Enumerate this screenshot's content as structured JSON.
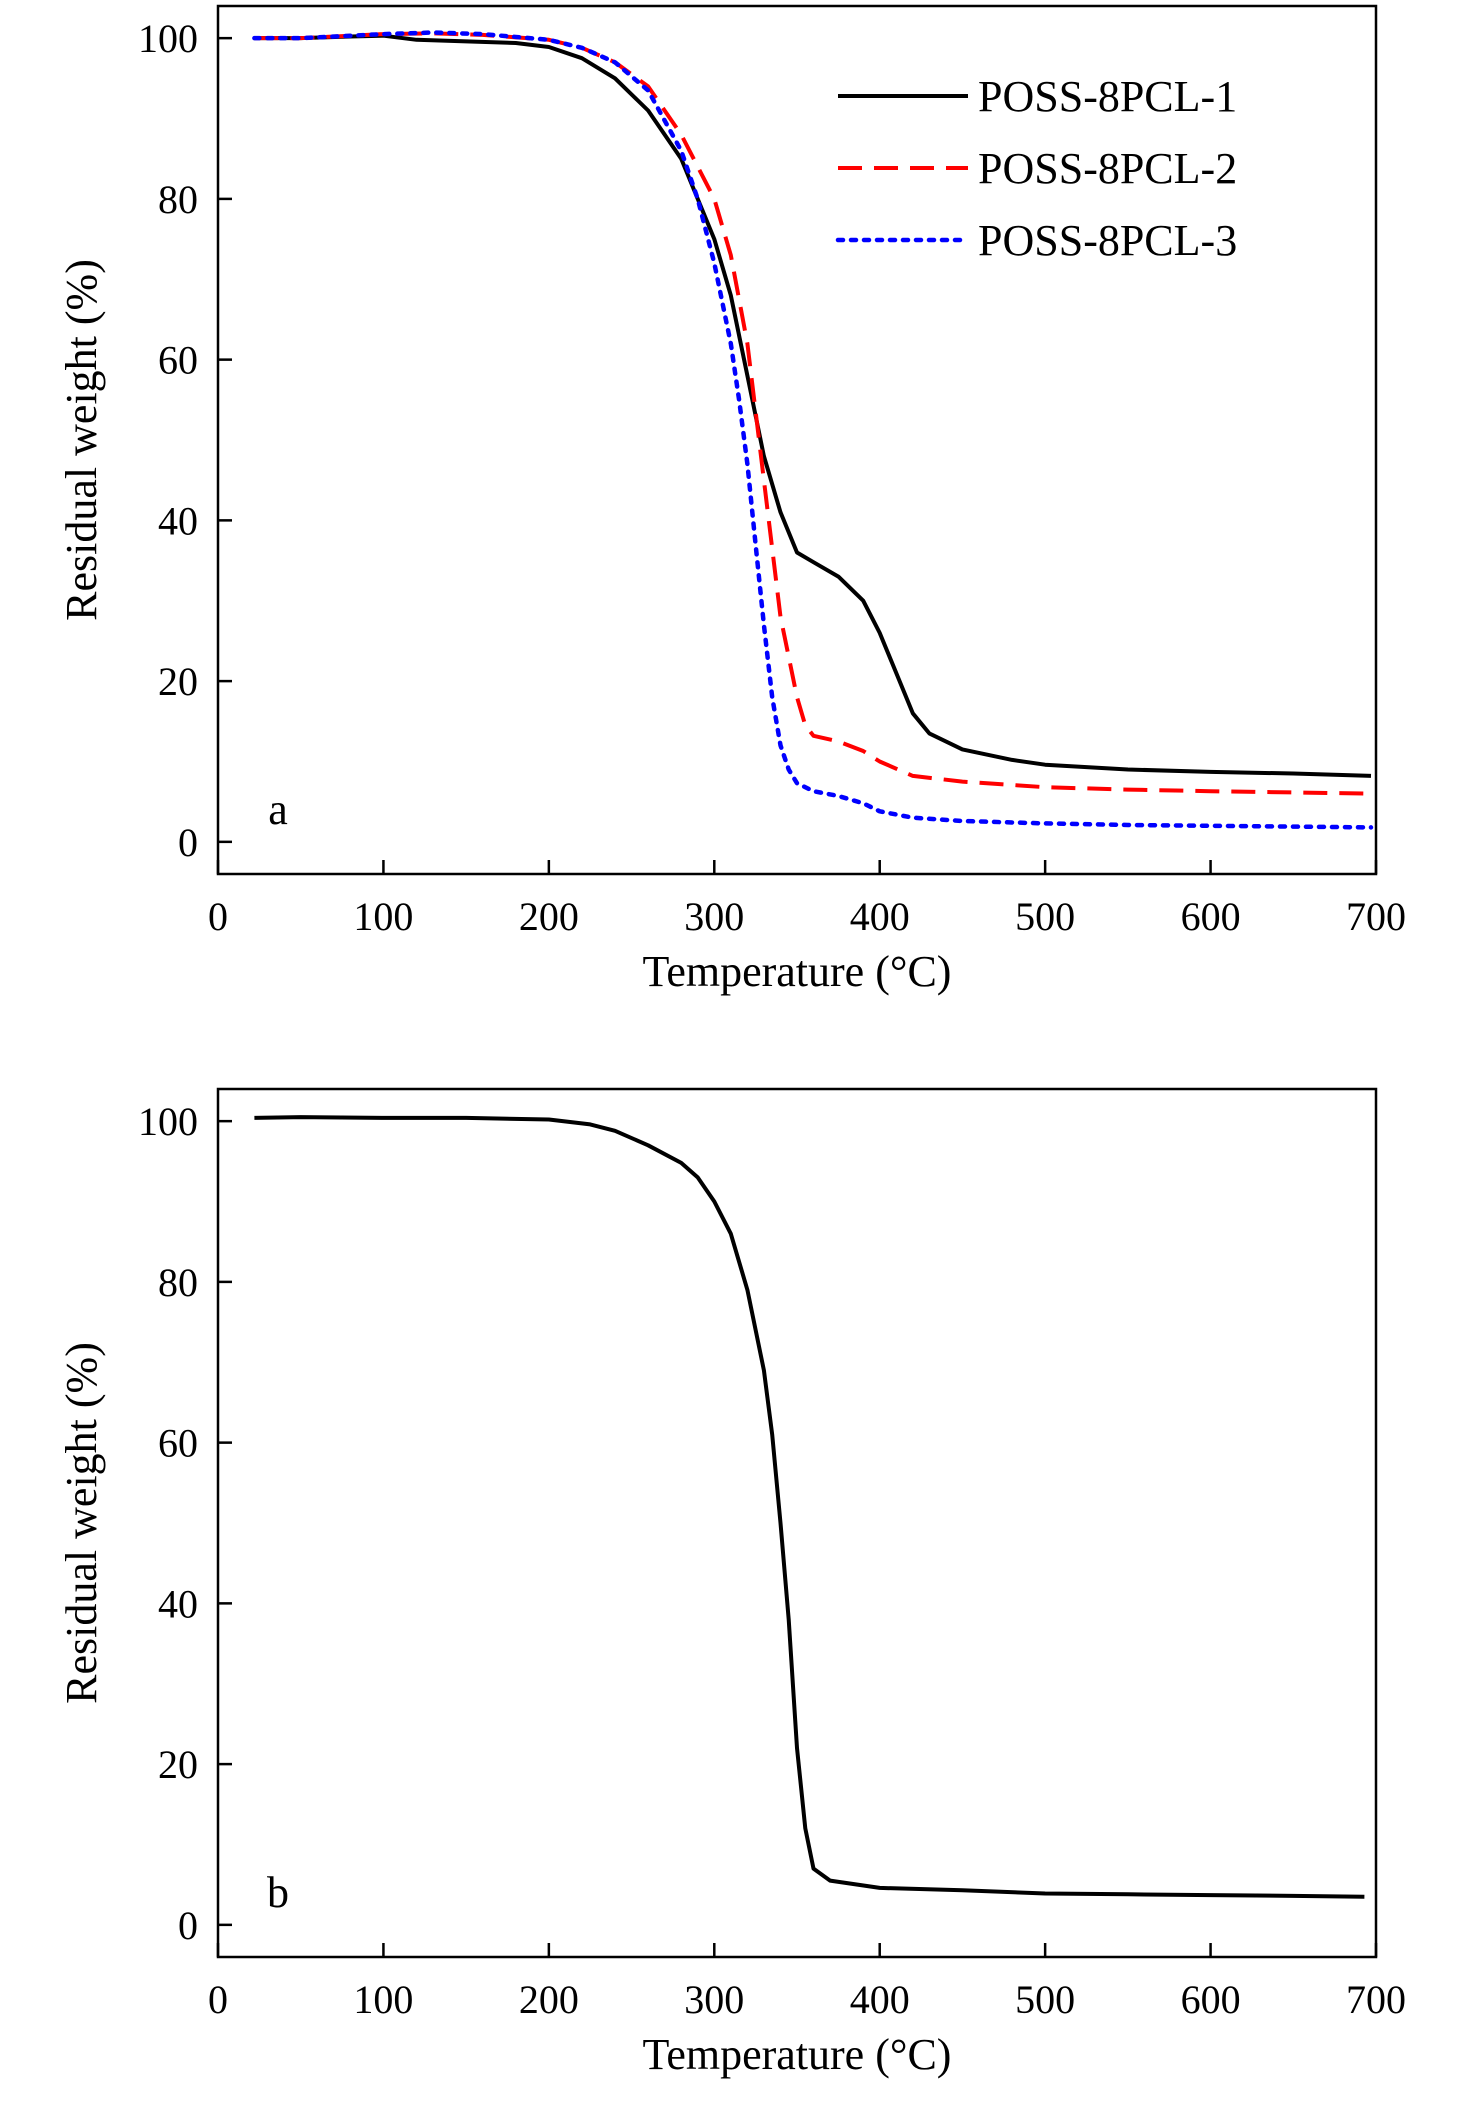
{
  "chart_data": [
    {
      "type": "line",
      "panel_label": "a",
      "xlabel": "Temperature (°C)",
      "ylabel": "Residual weight (%)",
      "xlim": [
        0,
        700
      ],
      "ylim": [
        -4,
        104
      ],
      "xticks": [
        0,
        100,
        200,
        300,
        400,
        500,
        600,
        700
      ],
      "yticks": [
        0,
        20,
        40,
        60,
        80,
        100
      ],
      "grid": false,
      "legend": "top-right",
      "series": [
        {
          "name": "POSS-8PCL-1",
          "color": "#000000",
          "dash": "solid",
          "points": [
            [
              22,
              100
            ],
            [
              50,
              100
            ],
            [
              80,
              100.2
            ],
            [
              100,
              100.3
            ],
            [
              120,
              99.8
            ],
            [
              150,
              99.6
            ],
            [
              180,
              99.4
            ],
            [
              200,
              98.9
            ],
            [
              220,
              97.5
            ],
            [
              240,
              95
            ],
            [
              260,
              91
            ],
            [
              280,
              85
            ],
            [
              300,
              75
            ],
            [
              310,
              68
            ],
            [
              320,
              58
            ],
            [
              330,
              48
            ],
            [
              340,
              41
            ],
            [
              350,
              36
            ],
            [
              360,
              34.8
            ],
            [
              375,
              33
            ],
            [
              390,
              30
            ],
            [
              400,
              26
            ],
            [
              410,
              21
            ],
            [
              420,
              16
            ],
            [
              430,
              13.5
            ],
            [
              450,
              11.5
            ],
            [
              480,
              10.2
            ],
            [
              500,
              9.6
            ],
            [
              550,
              9
            ],
            [
              600,
              8.7
            ],
            [
              650,
              8.5
            ],
            [
              697,
              8.2
            ]
          ]
        },
        {
          "name": "POSS-8PCL-2",
          "color": "#ff0000",
          "dash": "dashed",
          "points": [
            [
              22,
              100
            ],
            [
              50,
              100
            ],
            [
              80,
              100.3
            ],
            [
              100,
              100.5
            ],
            [
              130,
              100.6
            ],
            [
              160,
              100.4
            ],
            [
              200,
              99.8
            ],
            [
              220,
              98.8
            ],
            [
              240,
              97
            ],
            [
              260,
              94
            ],
            [
              280,
              88
            ],
            [
              300,
              80
            ],
            [
              310,
              73
            ],
            [
              320,
              62
            ],
            [
              330,
              45
            ],
            [
              340,
              28
            ],
            [
              350,
              18
            ],
            [
              355,
              14.5
            ],
            [
              360,
              13.2
            ],
            [
              375,
              12.5
            ],
            [
              390,
              11.3
            ],
            [
              400,
              10
            ],
            [
              420,
              8.2
            ],
            [
              450,
              7.5
            ],
            [
              500,
              6.8
            ],
            [
              550,
              6.5
            ],
            [
              600,
              6.3
            ],
            [
              697,
              6
            ]
          ]
        },
        {
          "name": "POSS-8PCL-3",
          "color": "#0000ff",
          "dash": "dotted",
          "points": [
            [
              22,
              100
            ],
            [
              50,
              100
            ],
            [
              80,
              100.3
            ],
            [
              100,
              100.5
            ],
            [
              130,
              100.7
            ],
            [
              160,
              100.5
            ],
            [
              200,
              99.8
            ],
            [
              220,
              98.8
            ],
            [
              240,
              97
            ],
            [
              260,
              93.5
            ],
            [
              280,
              86
            ],
            [
              290,
              80
            ],
            [
              300,
              72
            ],
            [
              310,
              62
            ],
            [
              315,
              55
            ],
            [
              320,
              47
            ],
            [
              325,
              37
            ],
            [
              330,
              27
            ],
            [
              335,
              18
            ],
            [
              340,
              12
            ],
            [
              345,
              9
            ],
            [
              350,
              7.3
            ],
            [
              360,
              6.3
            ],
            [
              375,
              5.7
            ],
            [
              390,
              4.8
            ],
            [
              400,
              3.8
            ],
            [
              420,
              3
            ],
            [
              450,
              2.6
            ],
            [
              500,
              2.3
            ],
            [
              550,
              2.1
            ],
            [
              600,
              2
            ],
            [
              697,
              1.8
            ]
          ]
        }
      ]
    },
    {
      "type": "line",
      "panel_label": "b",
      "xlabel": "Temperature (°C)",
      "ylabel": "Residual weight (%)",
      "xlim": [
        0,
        700
      ],
      "ylim": [
        -4,
        104
      ],
      "xticks": [
        0,
        100,
        200,
        300,
        400,
        500,
        600,
        700
      ],
      "yticks": [
        0,
        20,
        40,
        60,
        80,
        100
      ],
      "grid": false,
      "legend": "none",
      "series": [
        {
          "color": "#000000",
          "dash": "solid",
          "points": [
            [
              22,
              100.4
            ],
            [
              50,
              100.5
            ],
            [
              100,
              100.4
            ],
            [
              150,
              100.4
            ],
            [
              200,
              100.2
            ],
            [
              225,
              99.6
            ],
            [
              240,
              98.8
            ],
            [
              260,
              97
            ],
            [
              280,
              94.8
            ],
            [
              290,
              93
            ],
            [
              300,
              90
            ],
            [
              310,
              86
            ],
            [
              320,
              79
            ],
            [
              330,
              69
            ],
            [
              335,
              61
            ],
            [
              340,
              50
            ],
            [
              345,
              38
            ],
            [
              350,
              22
            ],
            [
              355,
              12
            ],
            [
              360,
              7
            ],
            [
              370,
              5.5
            ],
            [
              400,
              4.6
            ],
            [
              450,
              4.3
            ],
            [
              500,
              3.9
            ],
            [
              550,
              3.8
            ],
            [
              600,
              3.7
            ],
            [
              650,
              3.6
            ],
            [
              693,
              3.5
            ]
          ]
        }
      ]
    }
  ]
}
